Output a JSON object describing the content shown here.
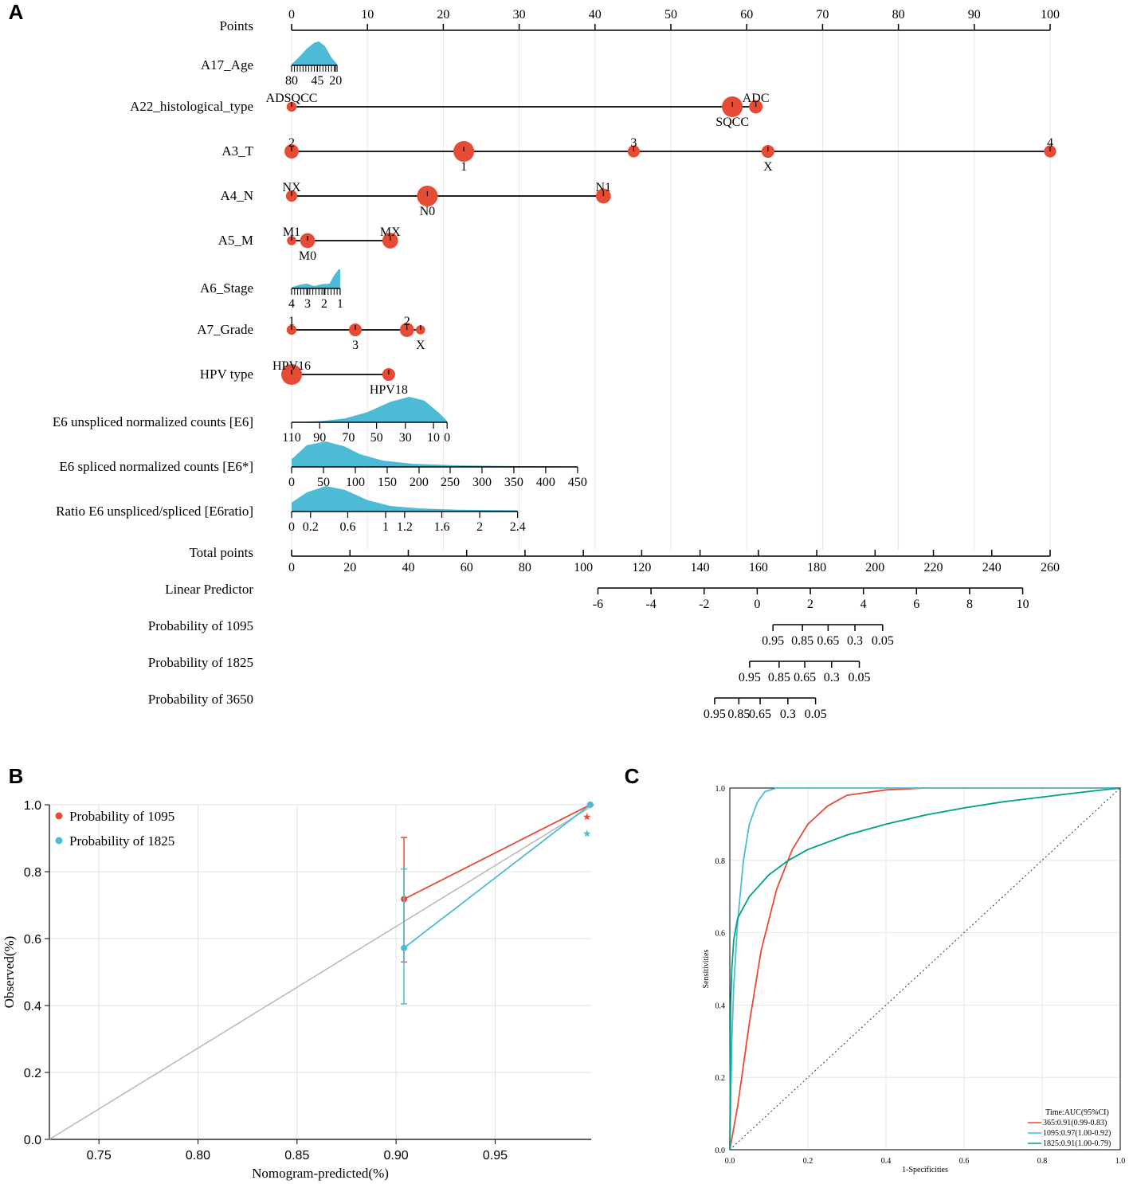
{
  "colors": {
    "dot": "#e64b35",
    "density": "#4dbbd5",
    "series_1095": "#e64b35",
    "series_1825": "#4dbbd5",
    "series_365": "#e64b35",
    "series_1825_roc": "#00a087",
    "grid": "#e0e0e0",
    "diagonal": "#bbbbbb"
  },
  "chart_data": [
    {
      "panel": "A",
      "type": "nomogram",
      "panel_label": "A",
      "points_axis": {
        "label": "Points",
        "range": [
          0,
          100
        ],
        "ticks": [
          "0",
          "10",
          "20",
          "30",
          "40",
          "50",
          "60",
          "70",
          "80",
          "90",
          "100"
        ]
      },
      "rows": [
        {
          "name": "A17_Age",
          "kind": "density",
          "range_points": [
            0,
            6
          ],
          "ticks": [
            {
              "label": "80",
              "pt": 0
            },
            {
              "label": "45",
              "pt": 3.4
            },
            {
              "label": "20",
              "pt": 5.8
            }
          ],
          "density": [
            [
              0,
              0.05
            ],
            [
              1,
              0.35
            ],
            [
              2,
              0.7
            ],
            [
              3,
              0.95
            ],
            [
              3.6,
              1.0
            ],
            [
              4.4,
              0.8
            ],
            [
              5.2,
              0.35
            ],
            [
              6,
              0.05
            ]
          ]
        },
        {
          "name": "A22_histological_type",
          "kind": "categorical",
          "levels": [
            {
              "label": "ADSQCC",
              "pt": 0,
              "size": 0.25,
              "pos": "above"
            },
            {
              "label": "SQCC",
              "pt": 58.1,
              "size": 1.0,
              "pos": "below"
            },
            {
              "label": "ADC",
              "pt": 61.2,
              "size": 0.5,
              "pos": "above"
            }
          ]
        },
        {
          "name": "A3_T",
          "kind": "categorical",
          "levels": [
            {
              "label": "2",
              "pt": 0,
              "size": 0.55,
              "pos": "above"
            },
            {
              "label": "1",
              "pt": 22.7,
              "size": 1.0,
              "pos": "below"
            },
            {
              "label": "3",
              "pt": 45.1,
              "size": 0.4,
              "pos": "above"
            },
            {
              "label": "X",
              "pt": 62.8,
              "size": 0.45,
              "pos": "below"
            },
            {
              "label": "4",
              "pt": 100,
              "size": 0.4,
              "pos": "above"
            }
          ]
        },
        {
          "name": "A4_N",
          "kind": "categorical",
          "levels": [
            {
              "label": "NX",
              "pt": 0,
              "size": 0.35,
              "pos": "above"
            },
            {
              "label": "N0",
              "pt": 17.9,
              "size": 1.0,
              "pos": "below"
            },
            {
              "label": "N1",
              "pt": 41.1,
              "size": 0.6,
              "pos": "above"
            }
          ]
        },
        {
          "name": "A5_M",
          "kind": "categorical",
          "levels": [
            {
              "label": "M1",
              "pt": 0,
              "size": 0.2,
              "pos": "above"
            },
            {
              "label": "M0",
              "pt": 2.1,
              "size": 0.6,
              "pos": "below"
            },
            {
              "label": "MX",
              "pt": 13.0,
              "size": 0.65,
              "pos": "above"
            }
          ]
        },
        {
          "name": "A6_Stage",
          "kind": "density",
          "range_points": [
            0,
            6.4
          ],
          "ticks": [
            {
              "label": "4",
              "pt": 0
            },
            {
              "label": "3",
              "pt": 2.1
            },
            {
              "label": "2",
              "pt": 4.3
            },
            {
              "label": "1",
              "pt": 6.4
            }
          ],
          "density": [
            [
              0,
              0.05
            ],
            [
              1,
              0.15
            ],
            [
              2,
              0.2
            ],
            [
              3,
              0.1
            ],
            [
              4,
              0.18
            ],
            [
              5,
              0.2
            ],
            [
              5.6,
              0.55
            ],
            [
              6.2,
              0.8
            ],
            [
              6.4,
              0.8
            ]
          ]
        },
        {
          "name": "A7_Grade",
          "kind": "categorical",
          "levels": [
            {
              "label": "1",
              "pt": 0,
              "size": 0.25,
              "pos": "above"
            },
            {
              "label": "3",
              "pt": 8.4,
              "size": 0.45,
              "pos": "below"
            },
            {
              "label": "2",
              "pt": 15.2,
              "size": 0.55,
              "pos": "above"
            },
            {
              "label": "X",
              "pt": 17.0,
              "size": 0.2,
              "pos": "below"
            }
          ]
        },
        {
          "name": "HPV type",
          "kind": "categorical",
          "levels": [
            {
              "label": "HPV16",
              "pt": 0,
              "size": 1.0,
              "pos": "above"
            },
            {
              "label": "HPV18",
              "pt": 12.8,
              "size": 0.45,
              "pos": "below"
            }
          ]
        },
        {
          "name": "E6 unspliced normalized counts [E6]",
          "kind": "density",
          "range_points": [
            0,
            20.5
          ],
          "ticks": [
            {
              "label": "110",
              "pt": 0
            },
            {
              "label": "90",
              "pt": 3.7
            },
            {
              "label": "70",
              "pt": 7.5
            },
            {
              "label": "50",
              "pt": 11.2
            },
            {
              "label": "30",
              "pt": 15.0
            },
            {
              "label": "10",
              "pt": 18.7
            },
            {
              "label": "0",
              "pt": 20.5
            }
          ],
          "density": [
            [
              0,
              0.0
            ],
            [
              4,
              0.05
            ],
            [
              7,
              0.15
            ],
            [
              10,
              0.4
            ],
            [
              13,
              0.8
            ],
            [
              15.5,
              1.0
            ],
            [
              17.5,
              0.85
            ],
            [
              19.5,
              0.35
            ],
            [
              20.5,
              0.05
            ]
          ]
        },
        {
          "name": "E6 spliced normalized counts [E6*]",
          "kind": "density",
          "range_points": [
            0,
            37.7
          ],
          "ticks": [
            {
              "label": "0",
              "pt": 0
            },
            {
              "label": "50",
              "pt": 4.2
            },
            {
              "label": "100",
              "pt": 8.4
            },
            {
              "label": "150",
              "pt": 12.6
            },
            {
              "label": "200",
              "pt": 16.8
            },
            {
              "label": "250",
              "pt": 20.9
            },
            {
              "label": "300",
              "pt": 25.1
            },
            {
              "label": "350",
              "pt": 29.3
            },
            {
              "label": "400",
              "pt": 33.5
            },
            {
              "label": "450",
              "pt": 37.7
            }
          ],
          "density": [
            [
              0,
              0.3
            ],
            [
              2,
              0.85
            ],
            [
              4.5,
              1.0
            ],
            [
              7,
              0.8
            ],
            [
              9,
              0.5
            ],
            [
              12,
              0.25
            ],
            [
              16,
              0.12
            ],
            [
              22,
              0.06
            ],
            [
              30,
              0.03
            ],
            [
              37.7,
              0.02
            ]
          ]
        },
        {
          "name": "Ratio E6 unspliced/spliced [E6ratio]",
          "kind": "density",
          "range_points": [
            0,
            29.8
          ],
          "ticks": [
            {
              "label": "0",
              "pt": 0
            },
            {
              "label": "0.2",
              "pt": 2.5
            },
            {
              "label": "0.6",
              "pt": 7.4
            },
            {
              "label": "1",
              "pt": 12.4
            },
            {
              "label": "1.2",
              "pt": 14.9
            },
            {
              "label": "1.6",
              "pt": 19.8
            },
            {
              "label": "2",
              "pt": 24.8
            },
            {
              "label": "2.4",
              "pt": 29.8
            }
          ],
          "density": [
            [
              0,
              0.35
            ],
            [
              2,
              0.75
            ],
            [
              4.5,
              1.0
            ],
            [
              7,
              0.85
            ],
            [
              10,
              0.45
            ],
            [
              13,
              0.22
            ],
            [
              17,
              0.12
            ],
            [
              22,
              0.07
            ],
            [
              29.8,
              0.05
            ]
          ]
        }
      ],
      "total_points_axis": {
        "label": "Total points",
        "range": [
          0,
          260
        ],
        "ticks": [
          "0",
          "20",
          "40",
          "60",
          "80",
          "100",
          "120",
          "140",
          "160",
          "180",
          "200",
          "220",
          "240",
          "260"
        ]
      },
      "linear_predictor": {
        "label": "Linear Predictor",
        "ticks": [
          {
            "label": "-6",
            "tp": 105
          },
          {
            "label": "-4",
            "tp": 123.2
          },
          {
            "label": "-2",
            "tp": 141.4
          },
          {
            "label": "0",
            "tp": 159.6
          },
          {
            "label": "2",
            "tp": 177.8
          },
          {
            "label": "4",
            "tp": 196
          },
          {
            "label": "6",
            "tp": 214.2
          },
          {
            "label": "8",
            "tp": 232.4
          },
          {
            "label": "10",
            "tp": 250.6
          }
        ]
      },
      "probability_axes": [
        {
          "label": "Probability of 1095",
          "ticks": [
            {
              "label": "0.95",
              "tp": 165
            },
            {
              "label": "0.85",
              "tp": 175.1
            },
            {
              "label": "0.65",
              "tp": 183.9
            },
            {
              "label": "0.3",
              "tp": 193.1
            },
            {
              "label": "0.05",
              "tp": 202.6
            }
          ]
        },
        {
          "label": "Probability of 1825",
          "ticks": [
            {
              "label": "0.95",
              "tp": 157
            },
            {
              "label": "0.85",
              "tp": 167.1
            },
            {
              "label": "0.65",
              "tp": 175.9
            },
            {
              "label": "0.3",
              "tp": 185.1
            },
            {
              "label": "0.05",
              "tp": 194.6
            }
          ]
        },
        {
          "label": "Probability of 3650",
          "ticks": [
            {
              "label": "0.95",
              "tp": 145
            },
            {
              "label": "0.85",
              "tp": 153.3
            },
            {
              "label": "0.65",
              "tp": 160.6
            },
            {
              "label": "0.3",
              "tp": 170.1
            },
            {
              "label": "0.05",
              "tp": 179.6
            }
          ]
        }
      ]
    },
    {
      "panel": "B",
      "type": "line",
      "panel_label": "B",
      "xlabel": "Nomogram-predicted(%)",
      "ylabel": "Observed(%)",
      "xlim": [
        0.725,
        0.9985
      ],
      "ylim": [
        0.0,
        1.0
      ],
      "xticks": [
        "0.75",
        "0.80",
        "0.85",
        "0.90",
        "0.95"
      ],
      "yticks": [
        "0.0",
        "0.2",
        "0.4",
        "0.6",
        "0.8",
        "1.0"
      ],
      "grid": true,
      "legend": "top-left",
      "series": [
        {
          "name": "Probability of 1095",
          "x": [
            0.904,
            0.998
          ],
          "y": [
            0.718,
            1.0
          ],
          "ci_low": [
            0.53,
            1.0
          ],
          "ci_high": [
            0.902,
            1.0
          ],
          "star": [
            0.998,
            0.965
          ]
        },
        {
          "name": "Probability of 1825",
          "x": [
            0.904,
            0.998
          ],
          "y": [
            0.572,
            1.0
          ],
          "ci_low": [
            0.405,
            1.0
          ],
          "ci_high": [
            0.808,
            1.0
          ],
          "star": [
            0.998,
            0.915
          ]
        }
      ],
      "reference_line": "ideal diagonal"
    },
    {
      "panel": "C",
      "type": "line",
      "panel_label": "C",
      "xlabel": "1-Specificities",
      "ylabel": "Sensitivities",
      "xlim": [
        0.0,
        1.0
      ],
      "ylim": [
        0.0,
        1.0
      ],
      "xticks": [
        "0.0",
        "0.2",
        "0.4",
        "0.6",
        "0.8",
        "1.0"
      ],
      "yticks": [
        "0.0",
        "0.2",
        "0.4",
        "0.6",
        "0.8",
        "1.0"
      ],
      "grid": true,
      "legend": "bottom-right",
      "legend_title": "Time:AUC(95%CI)",
      "series": [
        {
          "name": "365:0.91(0.99-0.83)",
          "x": [
            0,
            0.02,
            0.05,
            0.08,
            0.12,
            0.16,
            0.2,
            0.25,
            0.3,
            0.4,
            0.5,
            0.7,
            1.0
          ],
          "y": [
            0,
            0.12,
            0.35,
            0.55,
            0.72,
            0.83,
            0.9,
            0.95,
            0.98,
            0.995,
            1.0,
            1.0,
            1.0
          ]
        },
        {
          "name": "1095:0.97(1.00-0.92)",
          "x": [
            0,
            0.005,
            0.01,
            0.02,
            0.035,
            0.05,
            0.07,
            0.09,
            0.12,
            0.2,
            0.5,
            1.0
          ],
          "y": [
            0,
            0.3,
            0.45,
            0.63,
            0.8,
            0.9,
            0.96,
            0.99,
            1.0,
            1.0,
            1.0,
            1.0
          ]
        },
        {
          "name": "1825:0.91(1.00-0.79)",
          "x": [
            0,
            0.002,
            0.005,
            0.01,
            0.02,
            0.05,
            0.1,
            0.15,
            0.2,
            0.3,
            0.4,
            0.5,
            0.6,
            0.7,
            0.8,
            0.9,
            1.0
          ],
          "y": [
            0,
            0.4,
            0.5,
            0.58,
            0.64,
            0.7,
            0.76,
            0.8,
            0.83,
            0.87,
            0.9,
            0.925,
            0.945,
            0.962,
            0.975,
            0.988,
            1.0
          ]
        }
      ],
      "reference_line": "dotted diagonal"
    }
  ]
}
